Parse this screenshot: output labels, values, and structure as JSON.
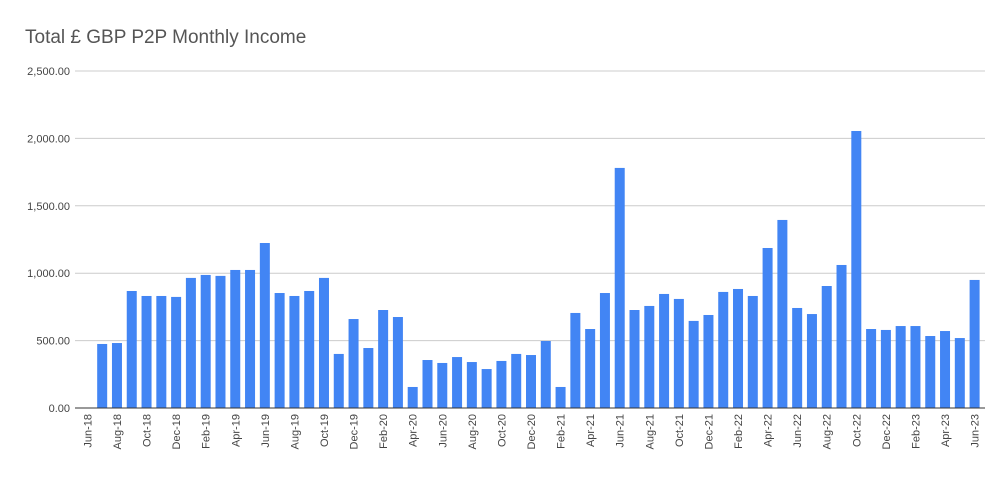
{
  "chart_data": {
    "type": "bar",
    "title": "Total £ GBP P2P Monthly Income",
    "categories": [
      "Jun-18",
      null,
      "Aug-18",
      null,
      "Oct-18",
      null,
      "Dec-18",
      null,
      "Feb-19",
      null,
      "Apr-19",
      null,
      "Jun-19",
      null,
      "Aug-19",
      null,
      "Oct-19",
      null,
      "Dec-19",
      null,
      "Feb-20",
      null,
      "Apr-20",
      null,
      "Jun-20",
      null,
      "Aug-20",
      null,
      "Oct-20",
      null,
      "Dec-20",
      null,
      "Feb-21",
      null,
      "Apr-21",
      null,
      "Jun-21",
      null,
      "Aug-21",
      null,
      "Oct-21",
      null,
      "Dec-21",
      null,
      "Feb-22",
      null,
      "Apr-22",
      null,
      "Jun-22",
      null,
      "Aug-22",
      null,
      "Oct-22",
      null,
      "Dec-22",
      null,
      "Feb-23",
      null,
      "Apr-23",
      null,
      "Jun-23"
    ],
    "values": [
      null,
      475,
      482,
      868,
      831,
      831,
      824,
      965,
      987,
      980,
      1024,
      1024,
      1224,
      853,
      831,
      868,
      965,
      401,
      660,
      445,
      727,
      675,
      156,
      356,
      334,
      378,
      341,
      289,
      349,
      401,
      393,
      497,
      156,
      705,
      586,
      853,
      1781,
      727,
      757,
      846,
      809,
      646,
      690,
      861,
      883,
      831,
      1187,
      1395,
      742,
      697,
      905,
      1061,
      2055,
      586,
      579,
      608,
      608,
      534,
      571,
      519,
      950
    ],
    "color": "#4285f4",
    "ylim": [
      0,
      2500
    ],
    "yticks": [
      {
        "value": 0,
        "label": "0.00"
      },
      {
        "value": 500,
        "label": "500.00"
      },
      {
        "value": 1000,
        "label": "1,000.00"
      },
      {
        "value": 1500,
        "label": "1,500.00"
      },
      {
        "value": 2000,
        "label": "2,000.00"
      },
      {
        "value": 2500,
        "label": "2,500.00"
      }
    ],
    "grid": true
  }
}
